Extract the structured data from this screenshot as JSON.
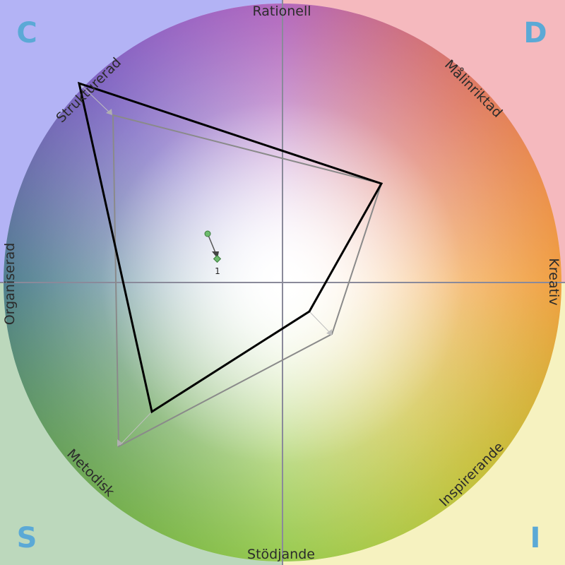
{
  "axis_labels": {
    "top": "Rationell",
    "bottom": "Stödjande",
    "left": "Organiserad",
    "right": "Kreativ",
    "top_left": "Strukturerad",
    "top_right": "Målinriktad",
    "bottom_left": "Metodisk",
    "bottom_right": "Inspirerande"
  },
  "corners": {
    "top_left": "C",
    "top_right": "D",
    "bottom_left": "S",
    "bottom_right": "I"
  },
  "marker_label": "1",
  "colors": {
    "C": "#8f8fff",
    "D": "#ff7f80",
    "I": "#f3ef5a",
    "S": "#5ab25a",
    "primary_outline": "#000000",
    "secondary_outline": "#8a8a8a",
    "marker": "#6dbb6d"
  }
}
